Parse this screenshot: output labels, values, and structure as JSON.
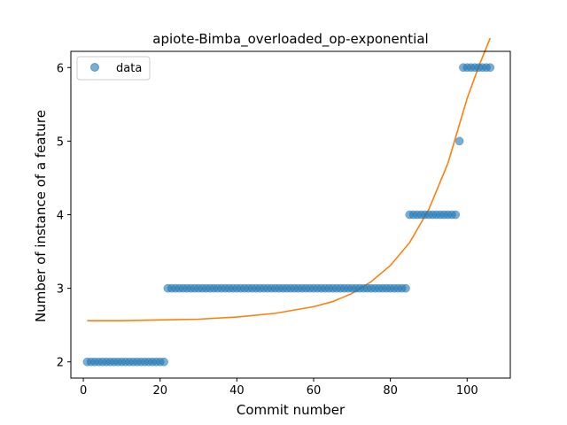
{
  "chart_data": {
    "type": "scatter",
    "title": "apiote-Bimba_overloaded_op-exponential",
    "xlabel": "Commit number",
    "ylabel": "Number of instance of a feature",
    "xlim": [
      -3.25,
      111.25
    ],
    "ylim": [
      1.78,
      6.22
    ],
    "xticks": [
      0,
      20,
      40,
      60,
      80,
      100
    ],
    "yticks": [
      2,
      3,
      4,
      5,
      6
    ],
    "grid": false,
    "legend": {
      "entries": [
        "data"
      ],
      "placement": "upper left"
    },
    "colors": {
      "data": "#1f77b4",
      "fit": "#ff7f0e"
    },
    "series": [
      {
        "name": "data",
        "kind": "scatter",
        "segments": [
          {
            "x_from": 1,
            "x_to": 21,
            "y": 2
          },
          {
            "x_from": 22,
            "x_to": 84,
            "y": 3
          },
          {
            "x_from": 85,
            "x_to": 97,
            "y": 4
          },
          {
            "x_from": 98,
            "x_to": 98,
            "y": 5
          },
          {
            "x_from": 99,
            "x_to": 106,
            "y": 6
          }
        ]
      },
      {
        "kind": "line",
        "x": [
          1,
          10,
          20,
          30,
          40,
          50,
          60,
          65,
          70,
          75,
          80,
          85,
          90,
          95,
          100,
          103,
          106
        ],
        "y": [
          2.56,
          2.56,
          2.57,
          2.58,
          2.61,
          2.66,
          2.75,
          2.82,
          2.93,
          3.09,
          3.31,
          3.62,
          4.07,
          4.7,
          5.58,
          6.01,
          6.4
        ]
      }
    ]
  }
}
